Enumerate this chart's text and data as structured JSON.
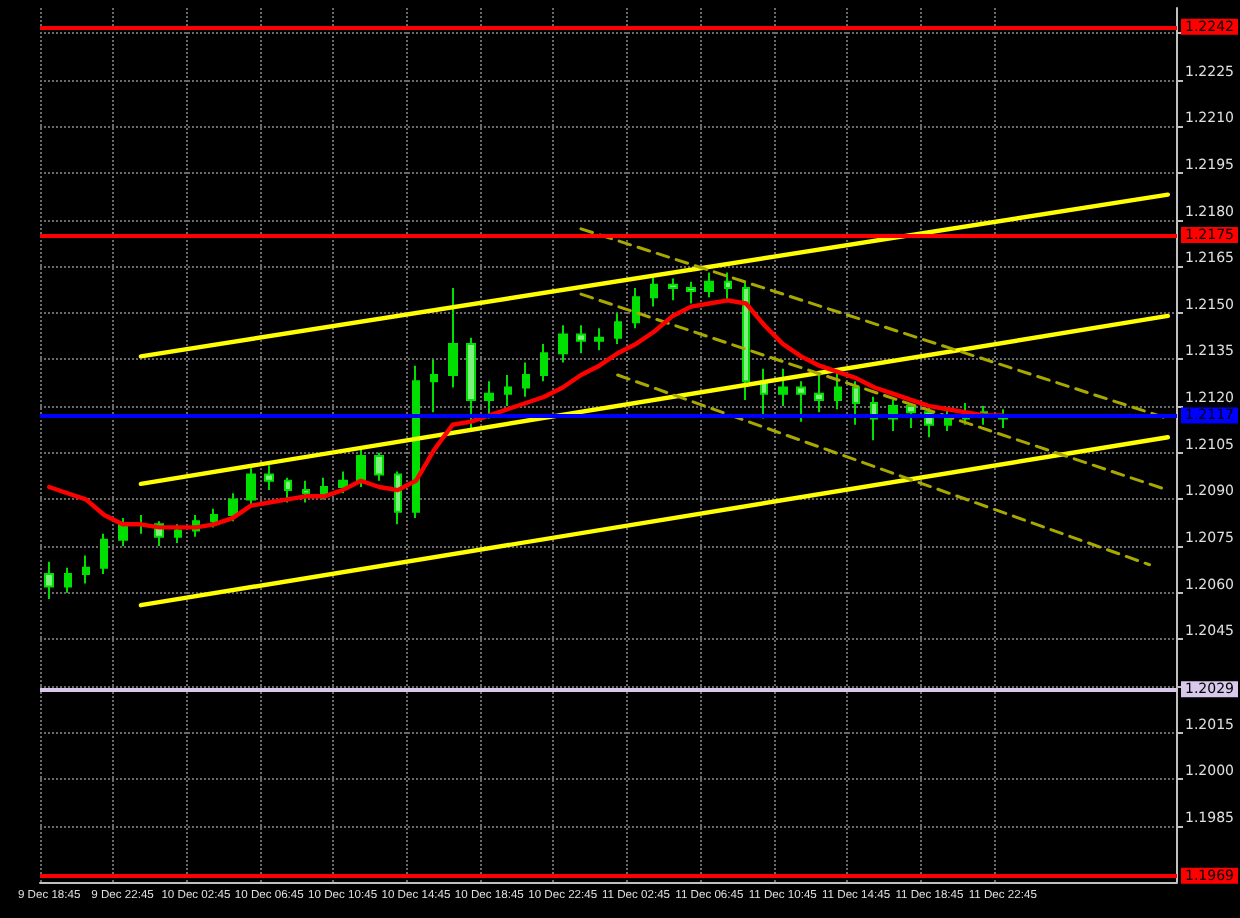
{
  "chart_data": {
    "type": "candlestick",
    "categories": [
      "9 Dec 18:45",
      null,
      null,
      null,
      "9 Dec 22:45",
      null,
      null,
      null,
      "10 Dec 02:45",
      null,
      null,
      null,
      "10 Dec 06:45",
      null,
      null,
      null,
      "10 Dec 10:45",
      null,
      null,
      null,
      "10 Dec 14:45",
      null,
      null,
      null,
      "10 Dec 18:45",
      null,
      null,
      null,
      "10 Dec 22:45",
      null,
      null,
      null,
      "11 Dec 02:45",
      null,
      null,
      null,
      "11 Dec 06:45",
      null,
      null,
      null,
      "11 Dec 10:45",
      null,
      null,
      null,
      "11 Dec 14:45",
      null,
      null,
      null,
      "11 Dec 18:45",
      null,
      null,
      null,
      "11 Dec 22:45",
      null,
      null,
      null,
      null,
      null,
      null,
      null,
      null,
      null
    ],
    "series": [
      {
        "type": "line",
        "color": "#ffff00",
        "line_style": "solid",
        "values": [
          null,
          null,
          null,
          null,
          null,
          1.2136,
          null,
          null,
          null,
          null,
          null,
          null,
          null,
          null,
          null,
          null,
          null,
          null,
          null,
          null,
          null,
          null,
          null,
          null,
          null,
          null,
          null,
          null,
          null,
          null,
          null,
          null,
          null,
          null,
          null,
          null,
          null,
          null,
          null,
          null,
          null,
          null,
          null,
          null,
          null,
          null,
          null,
          null,
          null,
          null,
          null,
          null,
          null,
          null,
          null,
          null,
          null,
          null,
          null,
          null,
          null,
          1.2188
        ]
      },
      {
        "type": "line",
        "color": "#ffff00",
        "line_style": "solid",
        "values": [
          null,
          null,
          null,
          null,
          null,
          1.2095,
          null,
          null,
          null,
          null,
          null,
          null,
          null,
          null,
          null,
          null,
          null,
          null,
          null,
          null,
          null,
          null,
          null,
          null,
          null,
          null,
          null,
          null,
          null,
          null,
          null,
          null,
          null,
          null,
          null,
          null,
          null,
          null,
          null,
          null,
          null,
          null,
          null,
          null,
          null,
          null,
          null,
          null,
          null,
          null,
          null,
          null,
          null,
          null,
          null,
          null,
          null,
          null,
          null,
          null,
          null,
          1.2149
        ]
      },
      {
        "type": "line",
        "color": "#ffff00",
        "line_style": "solid",
        "values": [
          null,
          null,
          null,
          null,
          null,
          1.2056,
          null,
          null,
          null,
          null,
          null,
          null,
          null,
          null,
          null,
          null,
          null,
          null,
          null,
          null,
          null,
          null,
          null,
          null,
          null,
          null,
          null,
          null,
          null,
          null,
          null,
          null,
          null,
          null,
          null,
          null,
          null,
          null,
          null,
          null,
          null,
          null,
          null,
          null,
          null,
          null,
          null,
          null,
          null,
          null,
          null,
          null,
          null,
          null,
          null,
          null,
          null,
          null,
          null,
          null,
          null,
          1.211
        ]
      },
      {
        "type": "line",
        "color": "#a8a800",
        "line_style": "dashed",
        "values": [
          null,
          null,
          null,
          null,
          null,
          null,
          null,
          null,
          null,
          null,
          null,
          null,
          null,
          null,
          null,
          null,
          null,
          null,
          null,
          null,
          null,
          null,
          null,
          null,
          null,
          null,
          null,
          null,
          null,
          1.2177,
          null,
          null,
          null,
          null,
          null,
          null,
          null,
          null,
          null,
          null,
          null,
          null,
          null,
          null,
          null,
          null,
          null,
          null,
          null,
          null,
          null,
          null,
          null,
          null,
          null,
          null,
          null,
          null,
          null,
          null,
          null,
          1.2116
        ]
      },
      {
        "type": "line",
        "color": "#a8a800",
        "line_style": "dashed",
        "values": [
          null,
          null,
          null,
          null,
          null,
          null,
          null,
          null,
          null,
          null,
          null,
          null,
          null,
          null,
          null,
          null,
          null,
          null,
          null,
          null,
          null,
          null,
          null,
          null,
          null,
          null,
          null,
          null,
          null,
          1.2156,
          null,
          null,
          null,
          null,
          null,
          null,
          null,
          null,
          null,
          null,
          null,
          null,
          null,
          null,
          null,
          null,
          null,
          null,
          null,
          null,
          null,
          null,
          null,
          null,
          null,
          null,
          null,
          null,
          null,
          null,
          null,
          1.2093
        ]
      },
      {
        "type": "line",
        "color": "#a8a800",
        "line_style": "dashed",
        "values": [
          null,
          null,
          null,
          null,
          null,
          null,
          null,
          null,
          null,
          null,
          null,
          null,
          null,
          null,
          null,
          null,
          null,
          null,
          null,
          null,
          null,
          null,
          null,
          null,
          null,
          null,
          null,
          null,
          null,
          null,
          null,
          1.213,
          null,
          null,
          null,
          null,
          null,
          null,
          null,
          null,
          null,
          null,
          null,
          null,
          null,
          null,
          null,
          null,
          null,
          null,
          null,
          null,
          null,
          null,
          null,
          null,
          null,
          null,
          null,
          null,
          1.2069,
          null
        ]
      },
      {
        "type": "line",
        "color": "#ff0000",
        "line_style": "solid",
        "values": [
          1.2094,
          1.2092,
          1.209,
          1.2085,
          1.2082,
          1.2082,
          1.2081,
          1.2081,
          1.2081,
          1.2082,
          1.2084,
          1.2088,
          1.2089,
          1.209,
          1.2091,
          1.2091,
          1.2093,
          1.2096,
          1.2094,
          1.2093,
          1.2096,
          1.2106,
          1.2114,
          1.2115,
          1.2117,
          1.2119,
          1.2121,
          1.2123,
          1.2126,
          1.213,
          1.2133,
          1.2137,
          1.214,
          1.2144,
          1.2149,
          1.2152,
          1.2153,
          1.2154,
          1.2153,
          1.2146,
          1.214,
          1.2136,
          1.2133,
          1.2131,
          1.2129,
          1.2126,
          1.2124,
          1.2122,
          1.212,
          1.2119,
          1.2118,
          1.2117,
          1.2117,
          null,
          null,
          null,
          null,
          null,
          null,
          null,
          null,
          null
        ]
      },
      {
        "color": "#00e000",
        "ohlc": [
          [
            1.2066,
            1.207,
            1.2058,
            1.2062
          ],
          [
            1.2062,
            1.2068,
            1.206,
            1.2066
          ],
          [
            1.2066,
            1.2072,
            1.2063,
            1.2068
          ],
          [
            1.2068,
            1.2079,
            1.2066,
            1.2077
          ],
          [
            1.2077,
            1.2084,
            1.2075,
            1.2082
          ],
          [
            1.2082,
            1.2085,
            1.2079,
            1.2082
          ],
          [
            1.2082,
            1.2083,
            1.2075,
            1.2078
          ],
          [
            1.2078,
            1.2082,
            1.2076,
            1.208
          ],
          [
            1.208,
            1.2085,
            1.2078,
            1.2083
          ],
          [
            1.2083,
            1.2087,
            1.2081,
            1.2085
          ],
          [
            1.2085,
            1.2092,
            1.2083,
            1.209
          ],
          [
            1.209,
            1.21,
            1.2088,
            1.2098
          ],
          [
            1.2098,
            1.2101,
            1.2093,
            1.2096
          ],
          [
            1.2096,
            1.2097,
            1.2089,
            1.2093
          ],
          [
            1.2093,
            1.2096,
            1.2089,
            1.2092
          ],
          [
            1.2092,
            1.2097,
            1.209,
            1.2094
          ],
          [
            1.2094,
            1.2099,
            1.2092,
            1.2096
          ],
          [
            1.2096,
            1.2107,
            1.2094,
            1.2104
          ],
          [
            1.2104,
            1.2105,
            1.2096,
            1.2098
          ],
          [
            1.2098,
            1.2099,
            1.2082,
            1.2086
          ],
          [
            1.2086,
            1.2133,
            1.2084,
            1.2128
          ],
          [
            1.2128,
            1.2135,
            1.2118,
            1.213
          ],
          [
            1.213,
            1.2158,
            1.2126,
            1.214
          ],
          [
            1.214,
            1.2142,
            1.2112,
            1.2122
          ],
          [
            1.2122,
            1.2128,
            1.2116,
            1.2124
          ],
          [
            1.2124,
            1.213,
            1.212,
            1.2126
          ],
          [
            1.2126,
            1.2134,
            1.2123,
            1.213
          ],
          [
            1.213,
            1.214,
            1.2128,
            1.2137
          ],
          [
            1.2137,
            1.2146,
            1.2134,
            1.2143
          ],
          [
            1.2143,
            1.2146,
            1.2137,
            1.2141
          ],
          [
            1.2141,
            1.2145,
            1.2138,
            1.2142
          ],
          [
            1.2142,
            1.215,
            1.214,
            1.2147
          ],
          [
            1.2147,
            1.2158,
            1.2145,
            1.2155
          ],
          [
            1.2155,
            1.2162,
            1.2152,
            1.2159
          ],
          [
            1.2159,
            1.2161,
            1.2154,
            1.2158
          ],
          [
            1.2158,
            1.216,
            1.2153,
            1.2157
          ],
          [
            1.2157,
            1.2163,
            1.2155,
            1.216
          ],
          [
            1.216,
            1.2163,
            1.2154,
            1.2158
          ],
          [
            1.2158,
            1.216,
            1.2122,
            1.2128
          ],
          [
            1.2128,
            1.2132,
            1.2116,
            1.2124
          ],
          [
            1.2124,
            1.2132,
            1.212,
            1.2126
          ],
          [
            1.2126,
            1.2128,
            1.2115,
            1.2124
          ],
          [
            1.2124,
            1.213,
            1.2118,
            1.2122
          ],
          [
            1.2122,
            1.2132,
            1.2119,
            1.2126
          ],
          [
            1.2126,
            1.2128,
            1.2114,
            1.2121
          ],
          [
            1.2121,
            1.2123,
            1.2109,
            1.2116
          ],
          [
            1.2116,
            1.2122,
            1.2112,
            1.212
          ],
          [
            1.212,
            1.2121,
            1.2113,
            1.2118
          ],
          [
            1.2118,
            1.212,
            1.211,
            1.2114
          ],
          [
            1.2114,
            1.2119,
            1.2112,
            1.2116
          ],
          [
            1.2116,
            1.2121,
            1.2114,
            1.2118
          ],
          [
            1.2118,
            1.212,
            1.2114,
            1.2117
          ],
          [
            1.2117,
            1.2119,
            1.2113,
            1.2116
          ],
          null,
          null,
          null,
          null,
          null,
          null,
          null,
          null,
          null
        ]
      }
    ],
    "ylim": [
      1.1967,
      1.2248
    ],
    "yticks": [
      1.1985,
      {
        "value": 1.2,
        "label": "1.2000"
      },
      1.2015,
      {
        "value": 1.203,
        "label": null
      },
      1.2045,
      {
        "value": 1.206,
        "label": "1.2060"
      },
      1.2075,
      {
        "value": 1.209,
        "label": "1.2090"
      },
      1.2105,
      {
        "value": 1.212,
        "label": "1.2120"
      },
      1.2135,
      {
        "value": 1.215,
        "label": "1.2150"
      },
      1.2165,
      {
        "value": 1.218,
        "label": "1.2180"
      },
      1.2195,
      {
        "value": 1.221,
        "label": "1.2210"
      },
      1.2225,
      {
        "value": 1.224,
        "label": null
      }
    ],
    "ref_lines": [
      {
        "axis": "y",
        "value": 1.2242,
        "label": "1.2242",
        "color": "#ff0000"
      },
      {
        "axis": "y",
        "value": 1.2175,
        "label": "1.2175",
        "color": "#ff0000"
      },
      {
        "axis": "y",
        "value": 1.2117,
        "label": "1.2117",
        "color": "#0000ff"
      },
      {
        "axis": "y",
        "value": 1.2029,
        "label": "1.2029",
        "color": "#d8c8ec"
      },
      {
        "axis": "y",
        "value": 1.1969,
        "label": "1.1969",
        "color": "#ff0000"
      }
    ],
    "grid": true,
    "marker": "none"
  }
}
